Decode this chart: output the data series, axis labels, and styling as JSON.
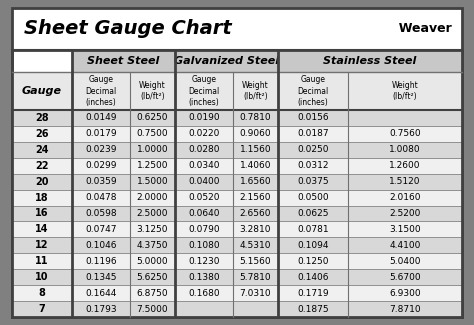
{
  "title": "Sheet Gauge Chart",
  "bg_outer": "#808080",
  "bg_inner": "#ffffff",
  "gauges": [
    28,
    26,
    24,
    22,
    20,
    18,
    16,
    14,
    12,
    11,
    10,
    8,
    7
  ],
  "sheet_steel": {
    "decimal": [
      "0.0149",
      "0.0179",
      "0.0239",
      "0.0299",
      "0.0359",
      "0.0478",
      "0.0598",
      "0.0747",
      "0.1046",
      "0.1196",
      "0.1345",
      "0.1644",
      "0.1793"
    ],
    "weight": [
      "0.6250",
      "0.7500",
      "1.0000",
      "1.2500",
      "1.5000",
      "2.0000",
      "2.5000",
      "3.1250",
      "4.3750",
      "5.0000",
      "5.6250",
      "6.8750",
      "7.5000"
    ]
  },
  "galvanized_steel": {
    "decimal": [
      "0.0190",
      "0.0220",
      "0.0280",
      "0.0340",
      "0.0400",
      "0.0520",
      "0.0640",
      "0.0790",
      "0.1080",
      "0.1230",
      "0.1380",
      "0.1680",
      ""
    ],
    "weight": [
      "0.7810",
      "0.9060",
      "1.1560",
      "1.4060",
      "1.6560",
      "2.1560",
      "2.6560",
      "3.2810",
      "4.5310",
      "5.1560",
      "5.7810",
      "7.0310",
      ""
    ]
  },
  "stainless_steel": {
    "decimal": [
      "0.0156",
      "0.0187",
      "0.0250",
      "0.0312",
      "0.0375",
      "0.0500",
      "0.0625",
      "0.0781",
      "0.1094",
      "0.1250",
      "0.1406",
      "0.1719",
      "0.1875"
    ],
    "weight": [
      "",
      "0.7560",
      "1.0080",
      "1.2600",
      "1.5120",
      "2.0160",
      "2.5200",
      "3.1500",
      "4.4100",
      "5.0400",
      "5.6700",
      "6.9300",
      "7.8710"
    ]
  },
  "row_colors": [
    "#d8d8d8",
    "#f0f0f0"
  ],
  "section_header_color": "#c8c8c8",
  "sub_header_color": "#e8e8e8",
  "gauge_col_color": "#e8e8e8",
  "border_color": "#404040",
  "inner_border_color": "#707070",
  "thin_border_color": "#909090",
  "title_area_bg": "#ffffff",
  "table_bg": "#ffffff"
}
